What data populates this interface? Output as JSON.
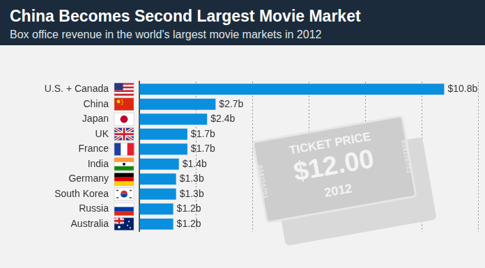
{
  "chart_data": {
    "type": "bar",
    "orientation": "horizontal",
    "title": "China Becomes Second Largest Movie Market",
    "subtitle": "Box office revenue in the world's largest movie markets in 2012",
    "categories": [
      "U.S. + Canada",
      "China",
      "Japan",
      "UK",
      "France",
      "India",
      "Germany",
      "South Korea",
      "Russia",
      "Australia"
    ],
    "values": [
      10.8,
      2.7,
      2.4,
      1.7,
      1.7,
      1.4,
      1.3,
      1.3,
      1.2,
      1.2
    ],
    "value_labels": [
      "$10.8b",
      "$2.7b",
      "$2.4b",
      "$1.7b",
      "$1.7b",
      "$1.4b",
      "$1.3b",
      "$1.3b",
      "$1.2b",
      "$1.2b"
    ],
    "data_labels": true,
    "color": "#0a8fde",
    "xlim": [
      0,
      12
    ],
    "xticks": [
      0,
      2,
      4,
      6,
      8,
      10,
      12
    ],
    "grid": true,
    "tick_labels": "y",
    "annotations": [
      "TICKET PRICE",
      "$12.00",
      "2012",
      "034156751"
    ]
  }
}
